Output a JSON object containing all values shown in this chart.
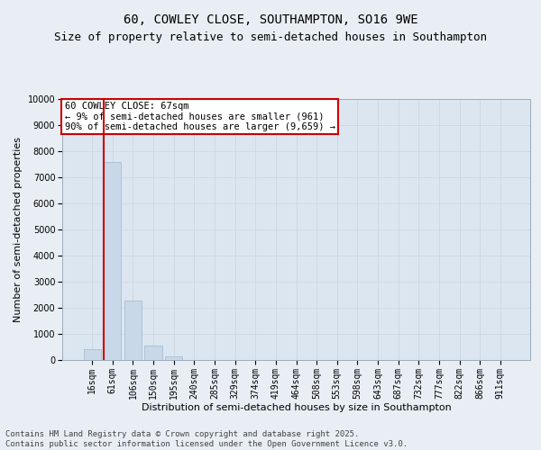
{
  "title_line1": "60, COWLEY CLOSE, SOUTHAMPTON, SO16 9WE",
  "title_line2": "Size of property relative to semi-detached houses in Southampton",
  "xlabel": "Distribution of semi-detached houses by size in Southampton",
  "ylabel": "Number of semi-detached properties",
  "categories": [
    "16sqm",
    "61sqm",
    "106sqm",
    "150sqm",
    "195sqm",
    "240sqm",
    "285sqm",
    "329sqm",
    "374sqm",
    "419sqm",
    "464sqm",
    "508sqm",
    "553sqm",
    "598sqm",
    "643sqm",
    "687sqm",
    "732sqm",
    "777sqm",
    "822sqm",
    "866sqm",
    "911sqm"
  ],
  "values": [
    430,
    7580,
    2270,
    550,
    130,
    0,
    0,
    0,
    0,
    0,
    0,
    0,
    0,
    0,
    0,
    0,
    0,
    0,
    0,
    0,
    0
  ],
  "bar_color": "#c8d8e8",
  "bar_edge_color": "#a0b8cc",
  "grid_color": "#c8d4de",
  "background_color": "#e8eef4",
  "axes_bg_color": "#dce6f0",
  "vline_color": "#cc0000",
  "annotation_text": "60 COWLEY CLOSE: 67sqm\n← 9% of semi-detached houses are smaller (961)\n90% of semi-detached houses are larger (9,659) →",
  "annotation_box_color": "#ffffff",
  "annotation_border_color": "#cc0000",
  "footer_text": "Contains HM Land Registry data © Crown copyright and database right 2025.\nContains public sector information licensed under the Open Government Licence v3.0.",
  "ylim": [
    0,
    10000
  ],
  "yticks": [
    0,
    1000,
    2000,
    3000,
    4000,
    5000,
    6000,
    7000,
    8000,
    9000,
    10000
  ],
  "title_fontsize": 10,
  "subtitle_fontsize": 9,
  "tick_fontsize": 7,
  "label_fontsize": 8,
  "annotation_fontsize": 7.5,
  "footer_fontsize": 6.5
}
